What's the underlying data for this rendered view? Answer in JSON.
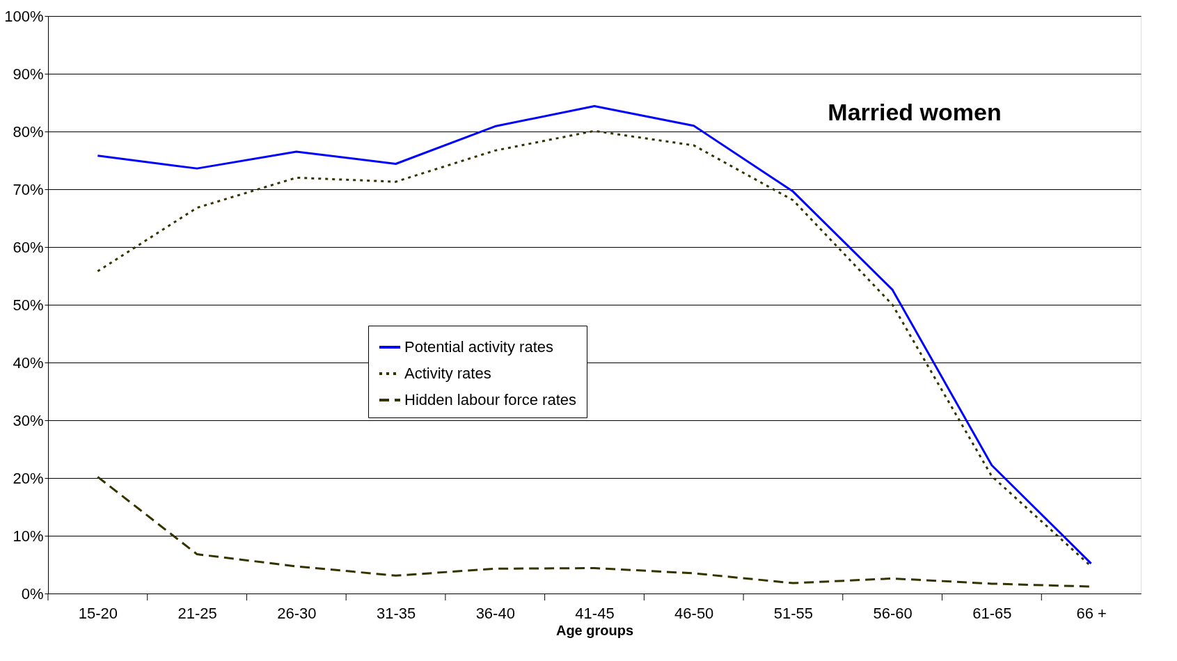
{
  "chart_data": {
    "type": "line",
    "title": "Married women",
    "xlabel": "Age groups",
    "categories": [
      "15-20",
      "21-25",
      "26-30",
      "31-35",
      "36-40",
      "41-45",
      "46-50",
      "51-55",
      "56-60",
      "61-65",
      "66 +"
    ],
    "series": [
      {
        "name": "Potential activity rates",
        "color": "#0000ff",
        "line_style": "solid",
        "values": [
          0.758,
          0.736,
          0.765,
          0.744,
          0.809,
          0.844,
          0.81,
          0.696,
          0.526,
          0.222,
          0.052
        ]
      },
      {
        "name": "Activity rates",
        "color": "#333300",
        "line_style": "dotted",
        "values": [
          0.558,
          0.668,
          0.72,
          0.713,
          0.767,
          0.801,
          0.776,
          0.681,
          0.5,
          0.203,
          0.047
        ]
      },
      {
        "name": "Hidden labour force rates",
        "color": "#333300",
        "line_style": "dashed",
        "values": [
          0.202,
          0.068,
          0.047,
          0.031,
          0.043,
          0.044,
          0.035,
          0.018,
          0.026,
          0.017,
          0.012
        ]
      }
    ],
    "ylim": [
      0,
      1
    ],
    "yticks": [
      {
        "value": 0,
        "label": "0%"
      },
      {
        "value": 0.1,
        "label": "10%"
      },
      {
        "value": 0.2,
        "label": "20%"
      },
      {
        "value": 0.3,
        "label": "30%"
      },
      {
        "value": 0.4,
        "label": "40%"
      },
      {
        "value": 0.5,
        "label": "50%"
      },
      {
        "value": 0.6,
        "label": "60%"
      },
      {
        "value": 0.7,
        "label": "70%"
      },
      {
        "value": 0.8,
        "label": "80%"
      },
      {
        "value": 0.9,
        "label": "90%"
      },
      {
        "value": 1,
        "label": "100%"
      }
    ],
    "grid": "y",
    "legend": "center",
    "marker": "none"
  }
}
